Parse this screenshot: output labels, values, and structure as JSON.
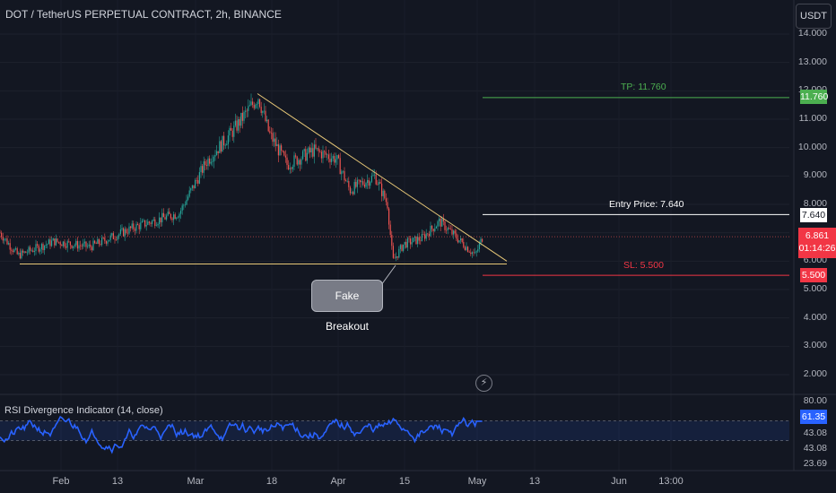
{
  "header": {
    "title": "DOT / TetherUS PERPETUAL CONTRACT, 2h, BINANCE",
    "currency_button": "USDT"
  },
  "colors": {
    "background": "#131722",
    "up": "#26a69a",
    "down": "#ef5350",
    "trendline": "#e8c878",
    "tp": "#4caf50",
    "sl": "#f23645",
    "entry": "#ffffff",
    "rsi": "#2962ff"
  },
  "chart_data": [
    {
      "type": "candlestick",
      "series_name": "DOT / TetherUS PERPETUAL CONTRACT",
      "interval": "2h",
      "ylim": [
        1.5,
        14.3
      ],
      "y_ticks": [
        "14.000",
        "13.000",
        "12.000",
        "11.000",
        "10.000",
        "9.000",
        "8.000",
        "7.000",
        "6.000",
        "5.000",
        "4.000",
        "3.000",
        "2.000"
      ],
      "x_ticks": [
        "Feb",
        "13",
        "Mar",
        "18",
        "Apr",
        "15",
        "May",
        "13",
        "Jun",
        "13:00"
      ],
      "price_path": [
        {
          "x": 0,
          "price": 7.0
        },
        {
          "x": 20,
          "price": 6.2
        },
        {
          "x": 60,
          "price": 6.7
        },
        {
          "x": 100,
          "price": 6.5
        },
        {
          "x": 150,
          "price": 7.2
        },
        {
          "x": 200,
          "price": 7.7
        },
        {
          "x": 230,
          "price": 9.5
        },
        {
          "x": 260,
          "price": 10.6
        },
        {
          "x": 288,
          "price": 11.8
        },
        {
          "x": 300,
          "price": 10.5
        },
        {
          "x": 320,
          "price": 9.4
        },
        {
          "x": 350,
          "price": 9.9
        },
        {
          "x": 375,
          "price": 9.6
        },
        {
          "x": 390,
          "price": 8.5
        },
        {
          "x": 418,
          "price": 9.0
        },
        {
          "x": 432,
          "price": 8.0
        },
        {
          "x": 438,
          "price": 6.0
        },
        {
          "x": 450,
          "price": 6.6
        },
        {
          "x": 470,
          "price": 6.8
        },
        {
          "x": 490,
          "price": 7.4
        },
        {
          "x": 510,
          "price": 6.8
        },
        {
          "x": 530,
          "price": 6.2
        },
        {
          "x": 538,
          "price": 6.86
        }
      ],
      "last_price": "6.861",
      "countdown": "01:14:26",
      "annotations": {
        "tp_label": "TP: 11.760",
        "tp_price": "11.760",
        "tp_value": 11.76,
        "entry_label": "Entry Price: 7.640",
        "entry_price": "7.640",
        "entry_value": 7.64,
        "sl_label": "SL: 5.500",
        "sl_price": "5.500",
        "sl_value": 5.5,
        "callout": "Fake Breakout"
      },
      "trendlines": [
        {
          "name": "descending-resistance",
          "from": {
            "x": 287,
            "price": 11.9
          },
          "to": {
            "x": 565,
            "price": 6.0
          }
        },
        {
          "name": "horizontal-support",
          "from": {
            "x": 22,
            "price": 5.9
          },
          "to": {
            "x": 565,
            "price": 5.9
          }
        }
      ]
    },
    {
      "type": "line",
      "title": "RSI Divergence Indicator (14, close)",
      "ylim": [
        23.69,
        80.0
      ],
      "y_ticks": [
        "80.00",
        "43.08",
        "43.08",
        "23.69"
      ],
      "last_value": "61.35",
      "band": [
        43.08,
        61.35
      ]
    }
  ]
}
